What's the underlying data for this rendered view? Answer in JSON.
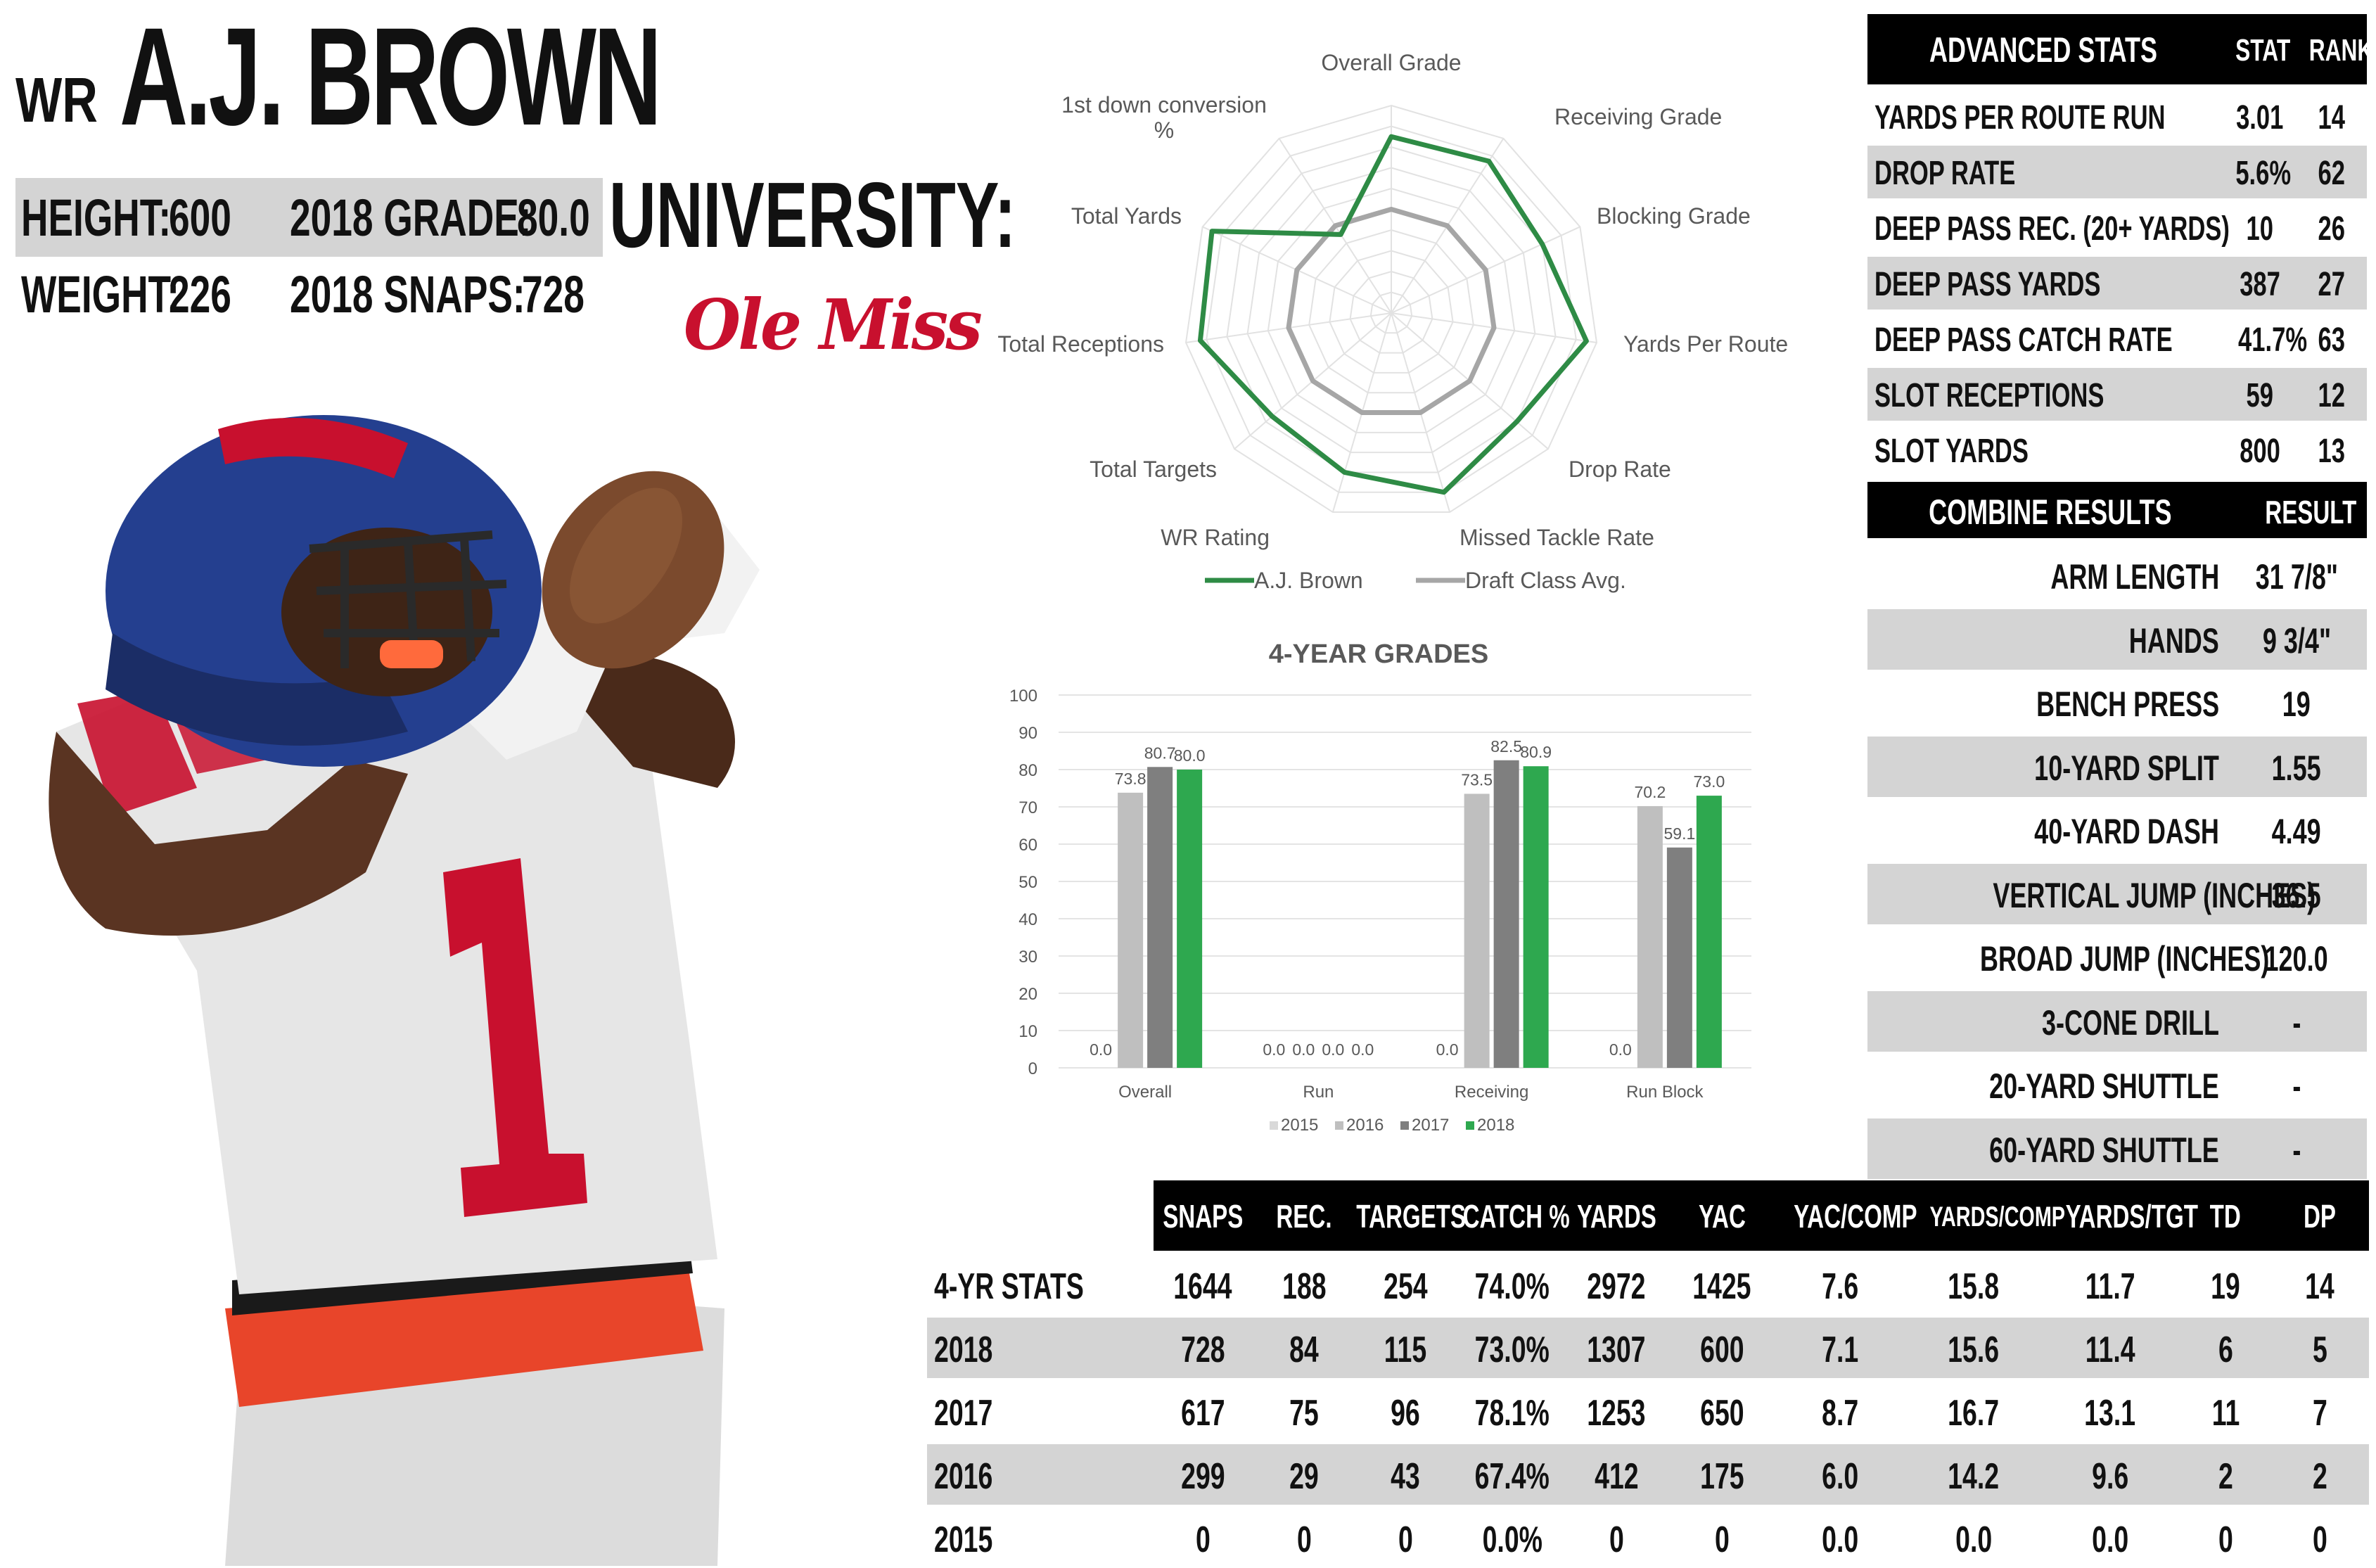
{
  "player": {
    "position": "WR",
    "name": "A.J. BROWN",
    "height_label": "HEIGHT:",
    "height": "600",
    "weight_label": "WEIGHT:",
    "weight": "226",
    "grade_label": "2018 GRADE:",
    "grade": "80.0",
    "snaps_label": "2018 SNAPS:",
    "snaps": "728",
    "university_label": "UNIVERSITY:",
    "university_logo_text": "Ole Miss"
  },
  "advanced_stats": {
    "title": "ADVANCED STATS",
    "col_stat": "STAT",
    "col_rank": "RANK",
    "rows": [
      {
        "label": "YARDS PER ROUTE RUN",
        "stat": "3.01",
        "rank": "14"
      },
      {
        "label": "DROP RATE",
        "stat": "5.6%",
        "rank": "62"
      },
      {
        "label": "DEEP PASS REC. (20+ YARDS)",
        "stat": "10",
        "rank": "26"
      },
      {
        "label": "DEEP PASS YARDS",
        "stat": "387",
        "rank": "27"
      },
      {
        "label": "DEEP PASS CATCH RATE",
        "stat": "41.7%",
        "rank": "63"
      },
      {
        "label": "SLOT RECEPTIONS",
        "stat": "59",
        "rank": "12"
      },
      {
        "label": "SLOT YARDS",
        "stat": "800",
        "rank": "13"
      }
    ]
  },
  "combine": {
    "title": "COMBINE RESULTS",
    "col_result": "RESULT",
    "rows": [
      {
        "label": "ARM LENGTH",
        "value": "31 7/8\""
      },
      {
        "label": "HANDS",
        "value": "9 3/4\""
      },
      {
        "label": "BENCH PRESS",
        "value": "19"
      },
      {
        "label": "10-YARD SPLIT",
        "value": "1.55"
      },
      {
        "label": "40-YARD DASH",
        "value": "4.49"
      },
      {
        "label": "VERTICAL JUMP (INCHES)",
        "value": "36.5"
      },
      {
        "label": "BROAD JUMP (INCHES)",
        "value": "120.0"
      },
      {
        "label": "3-CONE DRILL",
        "value": "-"
      },
      {
        "label": "20-YARD SHUTTLE",
        "value": "-"
      },
      {
        "label": "60-YARD SHUTTLE",
        "value": "-"
      }
    ]
  },
  "stats_table": {
    "columns": [
      "SNAPS",
      "REC.",
      "TARGETS",
      "CATCH %",
      "YARDS",
      "YAC",
      "YAC/COMP",
      "YARDS/COMP",
      "YARDS/TGT",
      "TD",
      "DP"
    ],
    "rows": [
      {
        "label": "4-YR STATS",
        "values": [
          "1644",
          "188",
          "254",
          "74.0%",
          "2972",
          "1425",
          "7.6",
          "15.8",
          "11.7",
          "19",
          "14"
        ]
      },
      {
        "label": "2018",
        "values": [
          "728",
          "84",
          "115",
          "73.0%",
          "1307",
          "600",
          "7.1",
          "15.6",
          "11.4",
          "6",
          "5"
        ]
      },
      {
        "label": "2017",
        "values": [
          "617",
          "75",
          "96",
          "78.1%",
          "1253",
          "650",
          "8.7",
          "16.7",
          "13.1",
          "11",
          "7"
        ]
      },
      {
        "label": "2016",
        "values": [
          "299",
          "29",
          "43",
          "67.4%",
          "412",
          "175",
          "6.0",
          "14.2",
          "9.6",
          "2",
          "2"
        ]
      },
      {
        "label": "2015",
        "values": [
          "0",
          "0",
          "0",
          "0.0%",
          "0",
          "0",
          "0.0",
          "0.0",
          "0.0",
          "0",
          "0"
        ]
      }
    ]
  },
  "chart_data": [
    {
      "type": "radar",
      "axes": [
        "Overall Grade",
        "Receiving Grade",
        "Blocking Grade",
        "Yards Per Route",
        "Drop Rate",
        "Missed Tackle Rate",
        "WR Rating",
        "Total Targets",
        "Total Receptions",
        "Total Yards",
        "1st down conversion %"
      ],
      "levels": 10,
      "series": [
        {
          "name": "A.J. Brown",
          "color": "#2e8b45",
          "values": [
            0.85,
            0.87,
            0.8,
            0.95,
            0.8,
            0.9,
            0.8,
            0.76,
            0.93,
            0.95,
            0.45
          ]
        },
        {
          "name": "Draft Class Avg.",
          "color": "#a6a6a6",
          "values": [
            0.5,
            0.5,
            0.5,
            0.5,
            0.5,
            0.5,
            0.5,
            0.5,
            0.5,
            0.5,
            0.5
          ]
        }
      ],
      "legend": "bottom"
    },
    {
      "type": "bar",
      "title": "4-YEAR GRADES",
      "categories": [
        "Overall",
        "Run",
        "Receiving",
        "Run Block"
      ],
      "ylim": [
        0,
        100
      ],
      "yticks": [
        0,
        10,
        20,
        30,
        40,
        50,
        60,
        70,
        80,
        90,
        100
      ],
      "series": [
        {
          "name": "2015",
          "color": "#d9d9d9",
          "values": [
            0.0,
            0.0,
            0.0,
            0.0
          ]
        },
        {
          "name": "2016",
          "color": "#bfbfbf",
          "values": [
            73.8,
            0.0,
            73.5,
            70.2
          ]
        },
        {
          "name": "2017",
          "color": "#7f7f7f",
          "values": [
            80.7,
            0.0,
            82.5,
            59.1
          ]
        },
        {
          "name": "2018",
          "color": "#2ea84f",
          "values": [
            80.0,
            0.0,
            80.9,
            73.0
          ]
        }
      ],
      "labels": [
        [
          "0.0",
          "73.8",
          "80.7",
          "80.0"
        ],
        [
          "0.0",
          "0.0",
          "0.0",
          "0.0"
        ],
        [
          "0.0",
          "73.5",
          "82.5",
          "80.9"
        ],
        [
          "0.0",
          "70.2",
          "59.1",
          "73.0"
        ]
      ],
      "legend": "bottom"
    }
  ]
}
